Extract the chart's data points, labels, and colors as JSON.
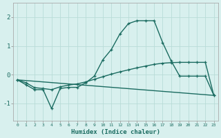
{
  "xlabel": "Humidex (Indice chaleur)",
  "background_color": "#d8f0ee",
  "grid_color": "#b8dcd8",
  "line_color": "#1a6b60",
  "x_ticks": [
    0,
    1,
    2,
    3,
    4,
    5,
    6,
    7,
    8,
    9,
    10,
    11,
    12,
    13,
    14,
    15,
    16,
    17,
    18,
    19,
    20,
    21,
    22,
    23
  ],
  "ylim": [
    -1.6,
    2.5
  ],
  "yticks": [
    -1,
    0,
    1,
    2
  ],
  "line1_x": [
    0,
    1,
    2,
    3,
    4,
    5,
    6,
    7,
    8,
    9,
    10,
    11,
    12,
    13,
    14,
    15,
    16,
    17,
    18,
    19,
    20,
    21,
    22,
    23
  ],
  "line1_y": [
    -0.18,
    -0.35,
    -0.52,
    -0.52,
    -1.18,
    -0.48,
    -0.44,
    -0.44,
    -0.28,
    -0.05,
    0.52,
    0.88,
    1.42,
    1.78,
    1.88,
    1.88,
    1.88,
    1.12,
    0.48,
    -0.05,
    -0.05,
    -0.05,
    -0.05,
    -0.72
  ],
  "line2_x": [
    0,
    1,
    2,
    3,
    4,
    5,
    6,
    7,
    8,
    9,
    10,
    11,
    12,
    13,
    14,
    15,
    16,
    17,
    18,
    19,
    20,
    21,
    22,
    23
  ],
  "line2_y": [
    -0.18,
    -0.28,
    -0.45,
    -0.48,
    -0.52,
    -0.42,
    -0.36,
    -0.32,
    -0.25,
    -0.16,
    -0.07,
    0.02,
    0.1,
    0.17,
    0.24,
    0.3,
    0.36,
    0.4,
    0.42,
    0.43,
    0.43,
    0.43,
    0.43,
    -0.72
  ],
  "line3_x": [
    0,
    23
  ],
  "line3_y": [
    -0.18,
    -0.72
  ]
}
